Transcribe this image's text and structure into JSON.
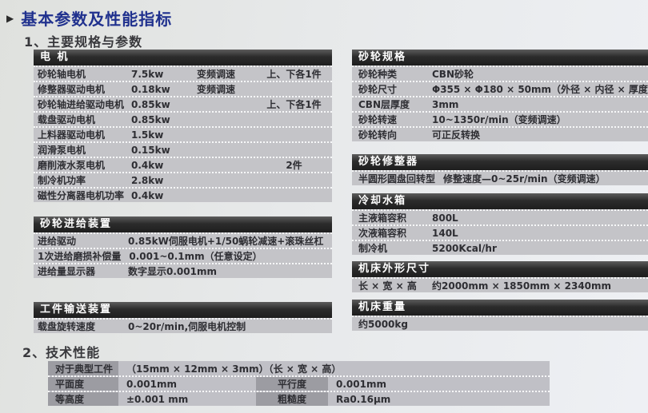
{
  "page": {
    "marker_icon": "▶",
    "title": "基本参数及性能指标",
    "section1_heading": "1、主要规格与参数",
    "section2_heading": "2、技术性能"
  },
  "left_tables": [
    {
      "header": "电 机",
      "rows": [
        {
          "label": "砂轮轴电机",
          "value": "7.5kw",
          "note": "变频调速",
          "extra": "上、下各1件"
        },
        {
          "label": "修整器驱动电机",
          "value": "0.18kw",
          "note": "变频调速",
          "extra": ""
        },
        {
          "label": "砂轮轴进给驱动电机",
          "value": "0.85kw",
          "note": "",
          "extra": "上、下各1件"
        },
        {
          "label": "载盘驱动电机",
          "value": "0.85kw",
          "note": "",
          "extra": ""
        },
        {
          "label": "上料器驱动电机",
          "value": "1.5kw",
          "note": "",
          "extra": ""
        },
        {
          "label": "润滑泵电机",
          "value": "0.15kw",
          "note": "",
          "extra": ""
        },
        {
          "label": "磨削液水泵电机",
          "value": "0.4kw",
          "note": "",
          "extra": "2件"
        },
        {
          "label": "制冷机功率",
          "value": "2.8kw",
          "note": "",
          "extra": ""
        },
        {
          "label": "磁性分离器电机功率",
          "value": "0.4kw",
          "note": "",
          "extra": ""
        }
      ]
    },
    {
      "header": "砂轮进给装置",
      "rows": [
        {
          "label": "进给驱动",
          "value": "0.85kW伺服电机+1/50蜗轮减速+滚珠丝杠"
        },
        {
          "label": "1次进给磨损补偿量",
          "value": "0.001~0.1mm（任意设定）"
        },
        {
          "label": "进给量显示器",
          "value": "数字显示0.001mm"
        }
      ]
    },
    {
      "header": "工件输送装置",
      "rows": [
        {
          "label": "载盘旋转速度",
          "value": "0~20r/min,伺服电机控制"
        }
      ]
    }
  ],
  "right_tables": [
    {
      "header": "砂轮规格",
      "rows": [
        {
          "label": "砂轮种类",
          "value": "CBN砂轮"
        },
        {
          "label": "砂轮尺寸",
          "value": "Φ355 × Φ180 × 50mm（外径 × 内径 × 厚度）"
        },
        {
          "label": "CBN层厚度",
          "value": "3mm"
        },
        {
          "label": "砂轮转速",
          "value": "10~1350r/min（变频调速）"
        },
        {
          "label": "砂轮转向",
          "value": "可正反转换"
        }
      ]
    },
    {
      "header": "砂轮修整器",
      "rows": [
        {
          "label": "半圆形圆盘回转型",
          "value": "修整速度—0~25r/min（变频调速）"
        }
      ]
    },
    {
      "header": "冷却水箱",
      "rows": [
        {
          "label": "主液箱容积",
          "value": "800L"
        },
        {
          "label": "次液箱容积",
          "value": "140L"
        },
        {
          "label": "制冷机",
          "value": "5200Kcal/hr"
        }
      ]
    },
    {
      "header": "机床外形尺寸",
      "rows": [
        {
          "label": "长 × 宽 × 高",
          "value": "约2000mm × 1850mm × 2340mm"
        }
      ]
    },
    {
      "header": "机床重量",
      "rows": [
        {
          "label": "约5000kg",
          "value": ""
        }
      ]
    }
  ],
  "performance": {
    "typical_label": "对于典型工件",
    "typical_value": "（15mm × 12mm × 3mm）（长 × 宽 × 高）",
    "rows": [
      {
        "label1": "平面度",
        "value1": "0.001mm",
        "label2": "平行度",
        "value2": "0.001mm"
      },
      {
        "label1": "等高度",
        "value1": "±0.001 mm",
        "label2": "粗糙度",
        "value2": "Ra0.16μm"
      }
    ]
  },
  "colors": {
    "title_blue": "#20318e",
    "header_bar_dark": "#2a2a2a",
    "row_gray": "#c4c4c8",
    "perf_label_gray": "#9c9ca2",
    "perf_value_gray": "#c0c0c6"
  }
}
